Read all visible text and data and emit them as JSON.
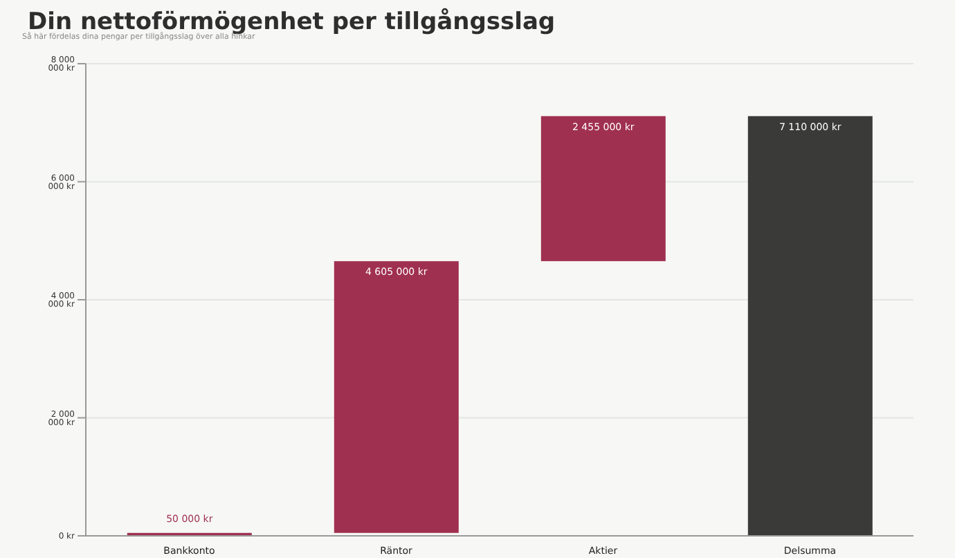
{
  "chart_data": {
    "type": "bar",
    "title": "Din nettoförmögenhet per tillgångsslag",
    "subtitle": "Så här fördelas dina pengar per tillgångsslag över alla hinkar",
    "categories": [
      "Bankkonto",
      "Räntor",
      "Aktier",
      "Delsumma"
    ],
    "values": [
      50000,
      4605000,
      2455000,
      7110000
    ],
    "base": [
      0,
      50000,
      4655000,
      0
    ],
    "colors": [
      "#a03050",
      "#a03050",
      "#a03050",
      "#3a3a38"
    ],
    "value_labels": [
      "50 000 kr",
      "4 605 000 kr",
      "2 455 000 kr",
      "7 110 000 kr"
    ],
    "ylim": [
      0,
      8000000
    ],
    "yticks": [
      {
        "value": 0,
        "label": "0 kr"
      },
      {
        "value": 2000000,
        "label": "2 000 000 kr"
      },
      {
        "value": 4000000,
        "label": "4 000 000 kr"
      },
      {
        "value": 6000000,
        "label": "6 000 000 kr"
      },
      {
        "value": 8000000,
        "label": "8 000 000 kr"
      }
    ],
    "grid": "y"
  }
}
